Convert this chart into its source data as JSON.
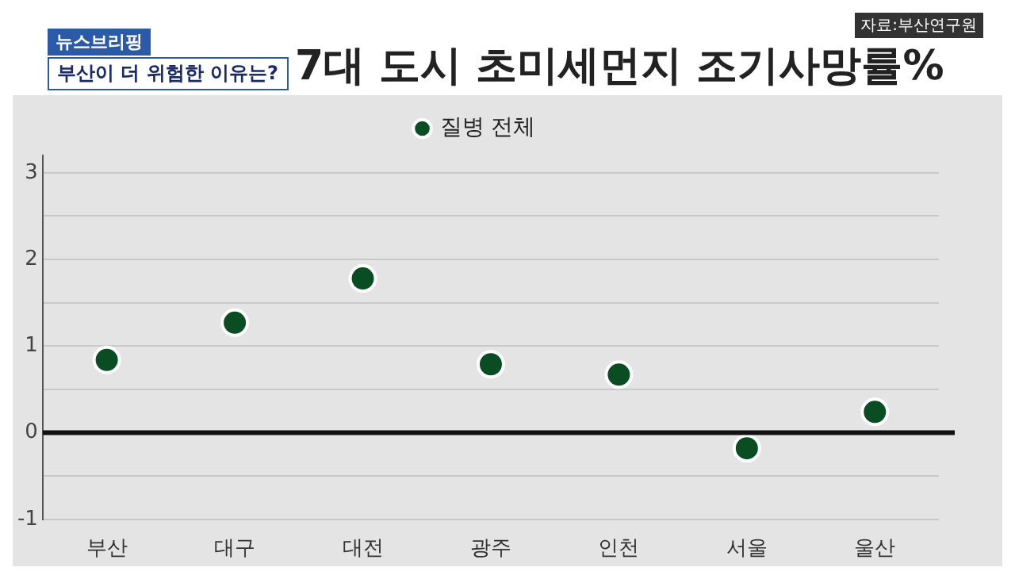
{
  "chart_data": {
    "type": "scatter",
    "title": "7대 도시 초미세먼지 조기사망률%",
    "subtitle": "부산이 더 위험한 이유는?",
    "annotations": [
      "뉴스브리핑",
      "자료:부산연구원"
    ],
    "categories": [
      "부산",
      "대구",
      "대전",
      "광주",
      "인천",
      "서울",
      "울산"
    ],
    "series": [
      {
        "name": "질병 전체",
        "color": "#0b4d22",
        "values": [
          0.84,
          1.27,
          1.78,
          0.79,
          0.67,
          -0.18,
          0.24
        ]
      }
    ],
    "ylim": [
      -1,
      3.2
    ],
    "yticks": [
      -1,
      {
        "value": -0.5,
        "label": null
      },
      0,
      {
        "value": 0.5,
        "label": null
      },
      1,
      {
        "value": 1.5,
        "label": null
      },
      2,
      {
        "value": 2.5,
        "label": null
      },
      3
    ],
    "ref_lines": [
      {
        "axis": "y",
        "value": 0,
        "color": "#111111"
      }
    ],
    "grid": "y",
    "legend": "top",
    "marker": "circle"
  }
}
